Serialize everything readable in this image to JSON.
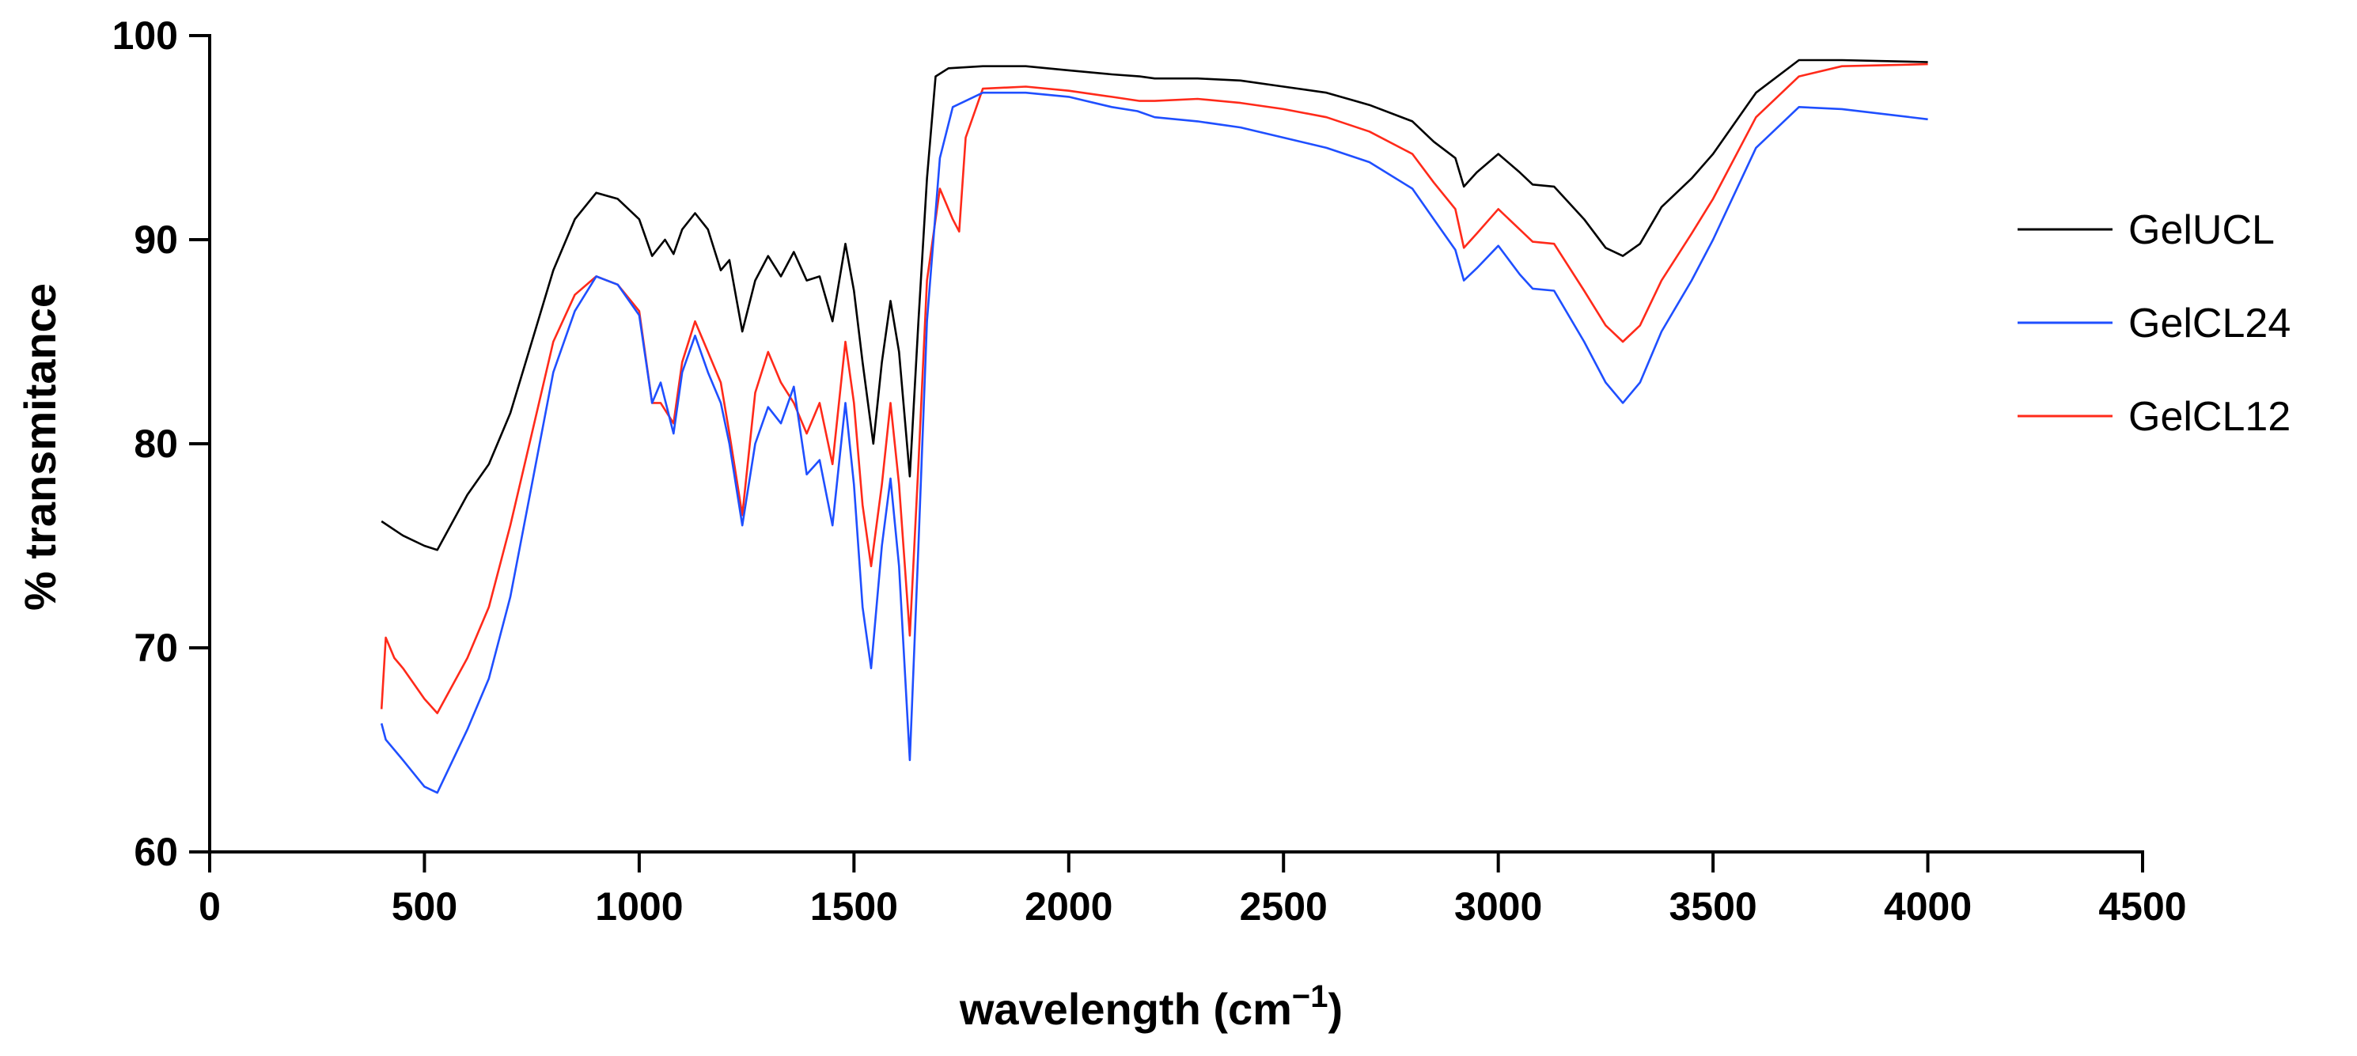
{
  "chart_data": {
    "type": "line",
    "title": "",
    "xlabel": "wavelength (cm",
    "xlabel_superscript": "−1",
    "xlabel_close": ")",
    "ylabel": "% transmitance",
    "xlim": [
      0,
      4500
    ],
    "ylim": [
      60,
      100
    ],
    "x_ticks": [
      0,
      500,
      1000,
      1500,
      2000,
      2500,
      3000,
      3500,
      4000,
      4500
    ],
    "y_ticks": [
      60,
      70,
      80,
      90,
      100
    ],
    "grid": false,
    "legend_position": "right",
    "series": [
      {
        "name": "GelUCL",
        "color": "#000000",
        "points": [
          [
            400,
            76.2
          ],
          [
            450,
            75.5
          ],
          [
            500,
            75.0
          ],
          [
            530,
            74.8
          ],
          [
            600,
            77.5
          ],
          [
            650,
            79.0
          ],
          [
            700,
            81.5
          ],
          [
            750,
            85.0
          ],
          [
            800,
            88.5
          ],
          [
            850,
            91.0
          ],
          [
            900,
            92.3
          ],
          [
            950,
            92.0
          ],
          [
            1000,
            91.0
          ],
          [
            1030,
            89.2
          ],
          [
            1060,
            90.0
          ],
          [
            1080,
            89.3
          ],
          [
            1100,
            90.5
          ],
          [
            1130,
            91.3
          ],
          [
            1160,
            90.5
          ],
          [
            1190,
            88.5
          ],
          [
            1210,
            89.0
          ],
          [
            1240,
            85.5
          ],
          [
            1270,
            88.0
          ],
          [
            1300,
            89.2
          ],
          [
            1330,
            88.2
          ],
          [
            1360,
            89.4
          ],
          [
            1390,
            88.0
          ],
          [
            1420,
            88.2
          ],
          [
            1450,
            86.0
          ],
          [
            1480,
            89.8
          ],
          [
            1500,
            87.5
          ],
          [
            1520,
            84.0
          ],
          [
            1545,
            80.0
          ],
          [
            1565,
            84.0
          ],
          [
            1585,
            87.0
          ],
          [
            1605,
            84.5
          ],
          [
            1630,
            78.4
          ],
          [
            1650,
            86.0
          ],
          [
            1670,
            93.0
          ],
          [
            1690,
            98.0
          ],
          [
            1720,
            98.4
          ],
          [
            1800,
            98.5
          ],
          [
            1900,
            98.5
          ],
          [
            2000,
            98.3
          ],
          [
            2100,
            98.1
          ],
          [
            2165,
            98.0
          ],
          [
            2200,
            97.9
          ],
          [
            2300,
            97.9
          ],
          [
            2400,
            97.8
          ],
          [
            2500,
            97.5
          ],
          [
            2600,
            97.2
          ],
          [
            2700,
            96.6
          ],
          [
            2800,
            95.8
          ],
          [
            2850,
            94.8
          ],
          [
            2900,
            94.0
          ],
          [
            2920,
            92.6
          ],
          [
            2950,
            93.3
          ],
          [
            3000,
            94.2
          ],
          [
            3050,
            93.3
          ],
          [
            3080,
            92.7
          ],
          [
            3130,
            92.6
          ],
          [
            3200,
            91.0
          ],
          [
            3250,
            89.6
          ],
          [
            3290,
            89.2
          ],
          [
            3330,
            89.8
          ],
          [
            3380,
            91.6
          ],
          [
            3450,
            93.0
          ],
          [
            3500,
            94.2
          ],
          [
            3600,
            97.2
          ],
          [
            3700,
            98.8
          ],
          [
            3800,
            98.8
          ],
          [
            4000,
            98.7
          ]
        ]
      },
      {
        "name": "GelCL24",
        "color": "#1f4fff",
        "points": [
          [
            400,
            66.3
          ],
          [
            410,
            65.5
          ],
          [
            450,
            64.5
          ],
          [
            500,
            63.2
          ],
          [
            530,
            62.9
          ],
          [
            600,
            66.0
          ],
          [
            650,
            68.5
          ],
          [
            700,
            72.5
          ],
          [
            750,
            78.0
          ],
          [
            800,
            83.5
          ],
          [
            850,
            86.5
          ],
          [
            900,
            88.2
          ],
          [
            950,
            87.8
          ],
          [
            1000,
            86.3
          ],
          [
            1030,
            82.0
          ],
          [
            1050,
            83.0
          ],
          [
            1080,
            80.5
          ],
          [
            1100,
            83.5
          ],
          [
            1130,
            85.3
          ],
          [
            1160,
            83.5
          ],
          [
            1190,
            82.0
          ],
          [
            1210,
            80.0
          ],
          [
            1240,
            76.0
          ],
          [
            1270,
            80.0
          ],
          [
            1300,
            81.8
          ],
          [
            1330,
            81.0
          ],
          [
            1360,
            82.8
          ],
          [
            1390,
            78.5
          ],
          [
            1420,
            79.2
          ],
          [
            1450,
            76.0
          ],
          [
            1480,
            82.0
          ],
          [
            1500,
            78.0
          ],
          [
            1520,
            72.0
          ],
          [
            1540,
            69.0
          ],
          [
            1565,
            75.0
          ],
          [
            1585,
            78.3
          ],
          [
            1605,
            74.0
          ],
          [
            1630,
            64.5
          ],
          [
            1650,
            75.0
          ],
          [
            1670,
            86.0
          ],
          [
            1700,
            94.0
          ],
          [
            1730,
            96.5
          ],
          [
            1800,
            97.2
          ],
          [
            1900,
            97.2
          ],
          [
            2000,
            97.0
          ],
          [
            2100,
            96.5
          ],
          [
            2160,
            96.3
          ],
          [
            2200,
            96.0
          ],
          [
            2300,
            95.8
          ],
          [
            2400,
            95.5
          ],
          [
            2500,
            95.0
          ],
          [
            2600,
            94.5
          ],
          [
            2700,
            93.8
          ],
          [
            2800,
            92.5
          ],
          [
            2850,
            91.0
          ],
          [
            2900,
            89.5
          ],
          [
            2920,
            88.0
          ],
          [
            2950,
            88.6
          ],
          [
            3000,
            89.7
          ],
          [
            3050,
            88.3
          ],
          [
            3080,
            87.6
          ],
          [
            3130,
            87.5
          ],
          [
            3200,
            85.0
          ],
          [
            3250,
            83.0
          ],
          [
            3290,
            82.0
          ],
          [
            3330,
            83.0
          ],
          [
            3380,
            85.5
          ],
          [
            3450,
            88.0
          ],
          [
            3500,
            90.0
          ],
          [
            3600,
            94.5
          ],
          [
            3700,
            96.5
          ],
          [
            3800,
            96.4
          ],
          [
            4000,
            95.9
          ]
        ]
      },
      {
        "name": "GelCL12",
        "color": "#ff2a1a",
        "points": [
          [
            400,
            67.0
          ],
          [
            410,
            70.5
          ],
          [
            430,
            69.5
          ],
          [
            450,
            69.0
          ],
          [
            500,
            67.5
          ],
          [
            530,
            66.8
          ],
          [
            600,
            69.5
          ],
          [
            650,
            72.0
          ],
          [
            700,
            76.0
          ],
          [
            750,
            80.5
          ],
          [
            800,
            85.0
          ],
          [
            850,
            87.3
          ],
          [
            900,
            88.2
          ],
          [
            950,
            87.8
          ],
          [
            1000,
            86.5
          ],
          [
            1030,
            82.0
          ],
          [
            1050,
            82.0
          ],
          [
            1080,
            81.0
          ],
          [
            1100,
            84.0
          ],
          [
            1130,
            86.0
          ],
          [
            1160,
            84.5
          ],
          [
            1190,
            83.0
          ],
          [
            1210,
            80.5
          ],
          [
            1240,
            76.5
          ],
          [
            1270,
            82.5
          ],
          [
            1300,
            84.5
          ],
          [
            1330,
            83.0
          ],
          [
            1360,
            82.0
          ],
          [
            1390,
            80.5
          ],
          [
            1420,
            82.0
          ],
          [
            1450,
            79.0
          ],
          [
            1480,
            85.0
          ],
          [
            1500,
            82.0
          ],
          [
            1520,
            77.0
          ],
          [
            1540,
            74.0
          ],
          [
            1565,
            78.0
          ],
          [
            1585,
            82.0
          ],
          [
            1605,
            78.0
          ],
          [
            1630,
            70.6
          ],
          [
            1650,
            79.0
          ],
          [
            1670,
            88.0
          ],
          [
            1700,
            92.5
          ],
          [
            1730,
            91.0
          ],
          [
            1745,
            90.4
          ],
          [
            1760,
            95.0
          ],
          [
            1800,
            97.4
          ],
          [
            1900,
            97.5
          ],
          [
            2000,
            97.3
          ],
          [
            2100,
            97.0
          ],
          [
            2165,
            96.8
          ],
          [
            2200,
            96.8
          ],
          [
            2300,
            96.9
          ],
          [
            2400,
            96.7
          ],
          [
            2500,
            96.4
          ],
          [
            2600,
            96.0
          ],
          [
            2700,
            95.3
          ],
          [
            2800,
            94.2
          ],
          [
            2850,
            92.8
          ],
          [
            2900,
            91.5
          ],
          [
            2920,
            89.6
          ],
          [
            2950,
            90.3
          ],
          [
            3000,
            91.5
          ],
          [
            3050,
            90.5
          ],
          [
            3080,
            89.9
          ],
          [
            3130,
            89.8
          ],
          [
            3200,
            87.5
          ],
          [
            3250,
            85.8
          ],
          [
            3290,
            85.0
          ],
          [
            3330,
            85.8
          ],
          [
            3380,
            88.0
          ],
          [
            3450,
            90.3
          ],
          [
            3500,
            92.0
          ],
          [
            3600,
            96.0
          ],
          [
            3700,
            98.0
          ],
          [
            3800,
            98.5
          ],
          [
            4000,
            98.6
          ]
        ]
      }
    ]
  }
}
